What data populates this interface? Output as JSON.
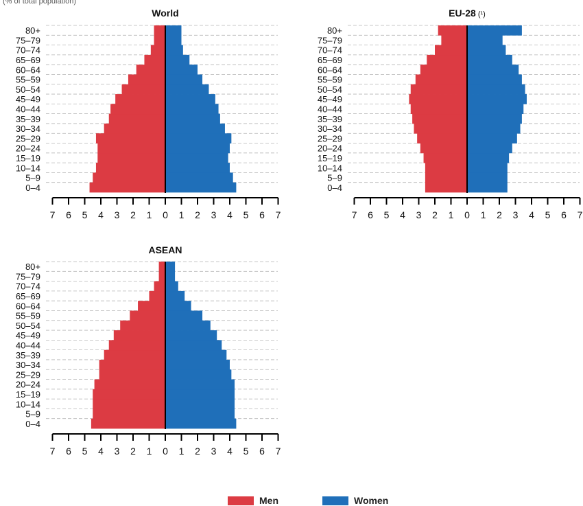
{
  "header_text": "(% of total population)",
  "colors": {
    "men": "#dc3b43",
    "women": "#1f6fb9",
    "axis": "#000000",
    "grid": "#b5b5b5"
  },
  "legend": {
    "men_label": "Men",
    "women_label": "Women"
  },
  "chart_data": [
    {
      "type": "bar",
      "orientation": "horizontal-population-pyramid",
      "title": "World",
      "title_note": "",
      "categories": [
        "0–4",
        "5–9",
        "10–14",
        "15–19",
        "20–24",
        "25–29",
        "30–34",
        "35–39",
        "40–44",
        "45–49",
        "50–54",
        "55–59",
        "60–64",
        "65–69",
        "70–74",
        "75–79",
        "80+"
      ],
      "series": [
        {
          "name": "Men",
          "values": [
            4.7,
            4.5,
            4.3,
            4.2,
            4.2,
            4.3,
            3.8,
            3.5,
            3.4,
            3.1,
            2.7,
            2.3,
            1.8,
            1.3,
            0.9,
            0.7,
            0.7
          ]
        },
        {
          "name": "Women",
          "values": [
            4.4,
            4.2,
            4.0,
            3.9,
            4.0,
            4.1,
            3.7,
            3.4,
            3.3,
            3.1,
            2.7,
            2.3,
            2.0,
            1.5,
            1.1,
            1.0,
            1.0
          ]
        }
      ],
      "xlim": [
        -7,
        7
      ],
      "xticks": [
        "7",
        "6",
        "5",
        "4",
        "3",
        "2",
        "1",
        "0",
        "1",
        "2",
        "3",
        "4",
        "5",
        "6",
        "7"
      ],
      "grid": "dashed"
    },
    {
      "type": "bar",
      "orientation": "horizontal-population-pyramid",
      "title": "EU-28",
      "title_note": "(¹)",
      "categories": [
        "0–4",
        "5–9",
        "10–14",
        "15–19",
        "20–24",
        "25–29",
        "30–34",
        "35–39",
        "40–44",
        "45–49",
        "50–54",
        "55–59",
        "60–64",
        "65–69",
        "70–74",
        "75–79",
        "80+"
      ],
      "series": [
        {
          "name": "Men",
          "values": [
            2.6,
            2.6,
            2.6,
            2.7,
            2.9,
            3.1,
            3.3,
            3.4,
            3.5,
            3.6,
            3.5,
            3.2,
            2.9,
            2.5,
            2.0,
            1.6,
            1.8
          ]
        },
        {
          "name": "Women",
          "values": [
            2.5,
            2.5,
            2.5,
            2.6,
            2.8,
            3.1,
            3.3,
            3.4,
            3.5,
            3.7,
            3.6,
            3.4,
            3.2,
            2.8,
            2.4,
            2.2,
            3.4
          ]
        }
      ],
      "xlim": [
        -7,
        7
      ],
      "xticks": [
        "7",
        "6",
        "5",
        "4",
        "3",
        "2",
        "1",
        "0",
        "1",
        "2",
        "3",
        "4",
        "5",
        "6",
        "7"
      ],
      "grid": "dashed"
    },
    {
      "type": "bar",
      "orientation": "horizontal-population-pyramid",
      "title": "ASEAN",
      "title_note": "",
      "categories": [
        "0–4",
        "5–9",
        "10–14",
        "15–19",
        "20–24",
        "25–29",
        "30–34",
        "35–39",
        "40–44",
        "45–49",
        "50–54",
        "55–59",
        "60–64",
        "65–69",
        "70–74",
        "75–79",
        "80+"
      ],
      "series": [
        {
          "name": "Men",
          "values": [
            4.6,
            4.5,
            4.5,
            4.5,
            4.4,
            4.1,
            4.1,
            3.8,
            3.5,
            3.2,
            2.8,
            2.2,
            1.7,
            1.0,
            0.7,
            0.4,
            0.4
          ]
        },
        {
          "name": "Women",
          "values": [
            4.4,
            4.3,
            4.3,
            4.3,
            4.3,
            4.1,
            4.0,
            3.8,
            3.5,
            3.2,
            2.8,
            2.3,
            1.6,
            1.2,
            0.8,
            0.6,
            0.6
          ]
        }
      ],
      "xlim": [
        -7,
        7
      ],
      "xticks": [
        "7",
        "6",
        "5",
        "4",
        "3",
        "2",
        "1",
        "0",
        "1",
        "2",
        "3",
        "4",
        "5",
        "6",
        "7"
      ],
      "grid": "dashed"
    }
  ]
}
